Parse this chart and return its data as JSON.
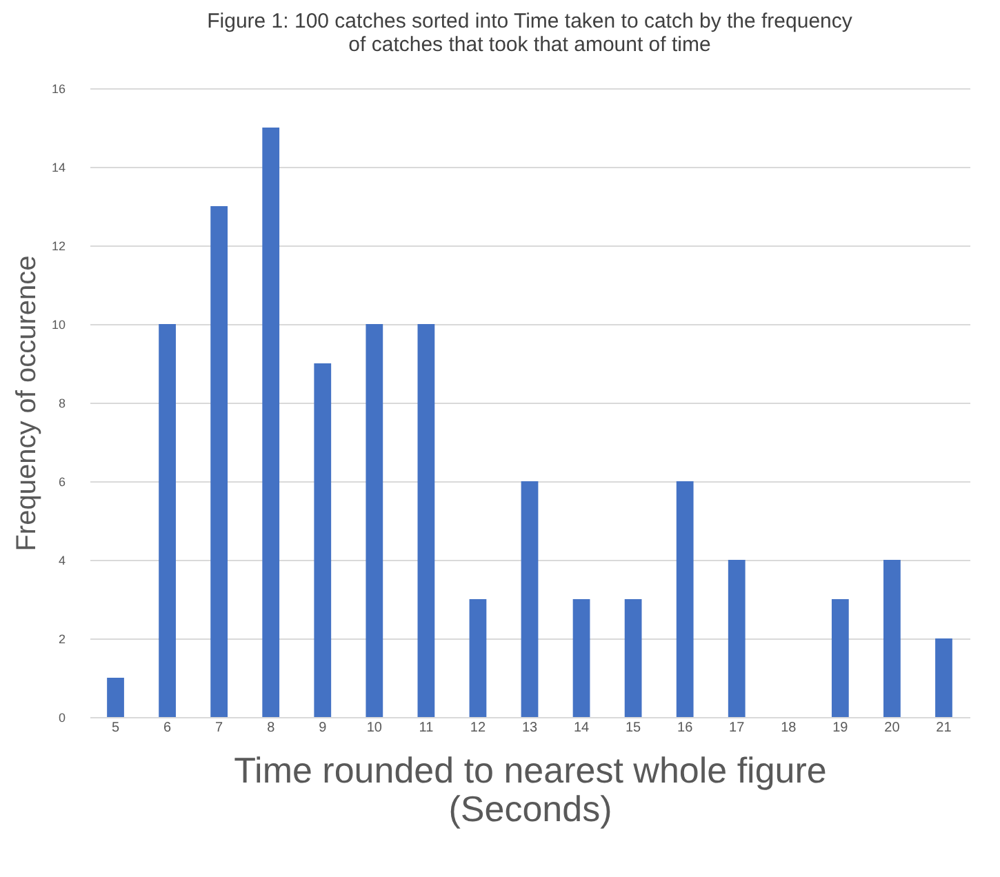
{
  "chart_data": {
    "type": "bar",
    "title": "Figure 1: 100 catches sorted into Time taken to catch by the frequency of catches that took that amount of time",
    "categories": [
      "5",
      "6",
      "7",
      "8",
      "9",
      "10",
      "11",
      "12",
      "13",
      "14",
      "15",
      "16",
      "17",
      "18",
      "19",
      "20",
      "21"
    ],
    "values": [
      1,
      10,
      13,
      15,
      9,
      10,
      10,
      3,
      6,
      3,
      3,
      6,
      4,
      0,
      3,
      4,
      2
    ],
    "color": "#4472c4",
    "xlabel": "Time rounded to nearest whole figure (Seconds)",
    "ylabel": "Frequency of occurence",
    "ylim": [
      0,
      16
    ],
    "yticks": [
      0,
      2,
      4,
      6,
      8,
      10,
      12,
      14,
      16
    ],
    "grid": "y"
  }
}
